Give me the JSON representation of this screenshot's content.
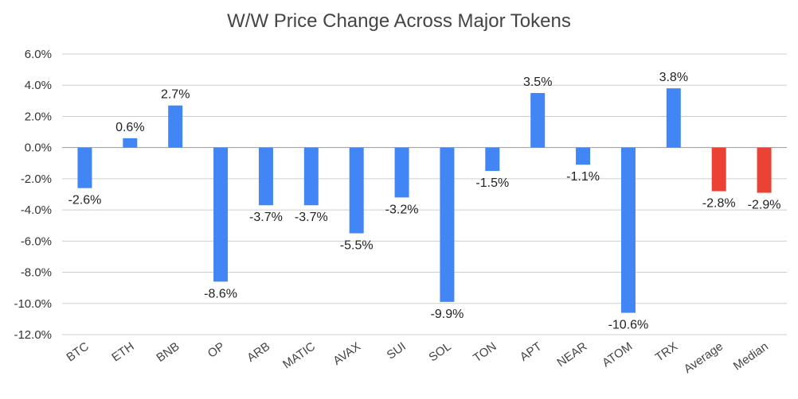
{
  "chart_data": {
    "type": "bar",
    "title": "W/W Price Change Across Major Tokens",
    "xlabel": "",
    "ylabel": "",
    "categories": [
      "BTC",
      "ETH",
      "BNB",
      "OP",
      "ARB",
      "MATIC",
      "AVAX",
      "SUI",
      "SOL",
      "TON",
      "APT",
      "NEAR",
      "ATOM",
      "TRX",
      "Average",
      "Median"
    ],
    "values": [
      -2.6,
      0.6,
      2.7,
      -8.6,
      -3.7,
      -3.7,
      -5.5,
      -3.2,
      -9.9,
      -1.5,
      3.5,
      -1.1,
      -10.6,
      3.8,
      -2.8,
      -2.9
    ],
    "data_labels": [
      "-2.6%",
      "0.6%",
      "2.7%",
      "-8.6%",
      "-3.7%",
      "-3.7%",
      "-5.5%",
      "-3.2%",
      "-9.9%",
      "-1.5%",
      "3.5%",
      "-1.1%",
      "-10.6%",
      "3.8%",
      "-2.8%",
      "-2.9%"
    ],
    "ylim": [
      -12,
      6
    ],
    "yticks": [
      6,
      4,
      2,
      0,
      -2,
      -4,
      -6,
      -8,
      -10,
      -12
    ],
    "ytick_labels": [
      "6.0%",
      "4.0%",
      "2.0%",
      "0.0%",
      "-2.0%",
      "-4.0%",
      "-6.0%",
      "-8.0%",
      "-10.0%",
      "-12.0%"
    ],
    "grid": true,
    "legend": "none",
    "colors": {
      "token": "#4285f4",
      "summary": "#ea4335"
    },
    "summary_categories": [
      "Average",
      "Median"
    ]
  }
}
